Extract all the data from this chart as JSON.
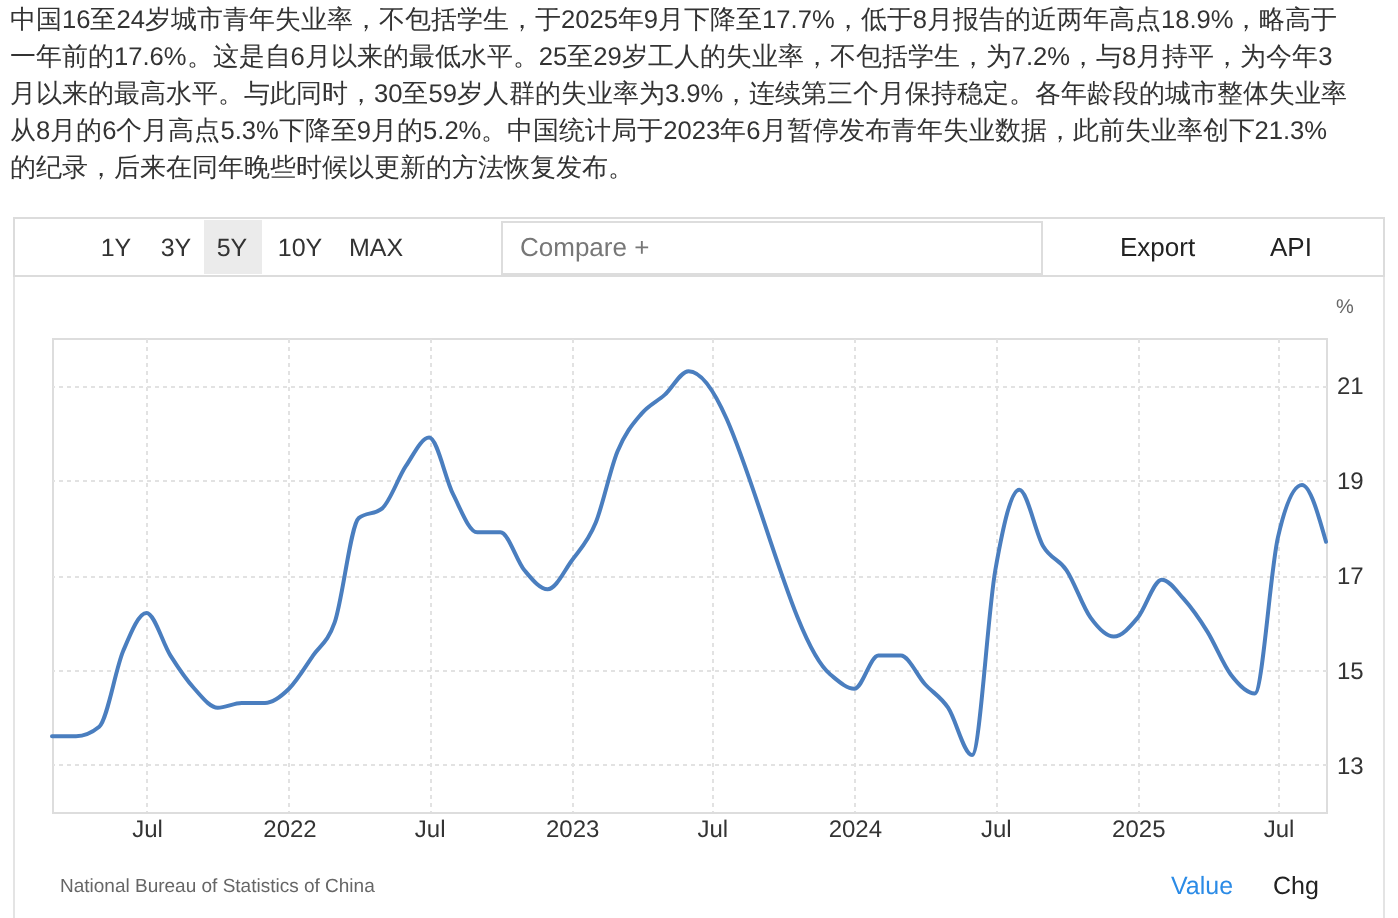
{
  "chart_data": {
    "type": "line",
    "subtitle": "中国16至24岁城市青年失业率，不包括学生，于2025年9月下降至17.7%，低于8月报告的近两年高点18.9%，略高于一年前的17.6%。这是自6月以来的最低水平。25至29岁工人的失业率，不包括学生，为7.2%，与8月持平，为今年3月以来的最高水平。与此同时，30至59岁人群的失业率为3.9%，连续第三个月保持稳定。各年龄段的城市整体失业率从8月的6个月高点5.3%下降至9月的5.2%。中国统计局于2023年6月暂停发布青年失业数据，此前失业率创下21.3%的纪录，后来在同年晚些时候以更新的方法恢复发布。",
    "ylabel": "%",
    "annotations": [
      "National Bureau of Statistics of China",
      "1Y",
      "3Y",
      "5Y",
      "10Y",
      "MAX",
      "Compare +",
      "Export",
      "API",
      "Value",
      "Chg"
    ],
    "x": [
      "2021-03",
      "2021-04",
      "2021-05",
      "2021-06",
      "2021-07",
      "2021-08",
      "2021-09",
      "2021-10",
      "2021-11",
      "2021-12",
      "2022-01",
      "2022-02",
      "2022-03",
      "2022-04",
      "2022-05",
      "2022-06",
      "2022-07",
      "2022-08",
      "2022-09",
      "2022-10",
      "2022-11",
      "2022-12",
      "2023-01",
      "2023-02",
      "2023-03",
      "2023-04",
      "2023-05",
      "2023-06",
      "2023-12",
      "2024-01",
      "2024-02",
      "2024-03",
      "2024-04",
      "2024-05",
      "2024-06",
      "2024-07",
      "2024-08",
      "2024-09",
      "2024-10",
      "2024-11",
      "2024-12",
      "2025-01",
      "2025-02",
      "2025-03",
      "2025-04",
      "2025-05",
      "2025-06",
      "2025-07",
      "2025-08",
      "2025-09"
    ],
    "values": [
      13.6,
      13.6,
      13.8,
      15.4,
      16.2,
      15.3,
      14.6,
      14.2,
      14.3,
      14.3,
      14.6,
      15.3,
      16.0,
      18.2,
      18.4,
      19.3,
      19.9,
      18.7,
      17.9,
      17.9,
      17.1,
      16.7,
      17.3,
      18.1,
      19.6,
      20.4,
      20.8,
      21.3,
      14.9,
      14.6,
      15.3,
      15.3,
      14.7,
      14.2,
      13.2,
      17.1,
      18.8,
      17.6,
      17.1,
      16.1,
      15.7,
      16.1,
      16.9,
      16.5,
      15.8,
      14.9,
      14.5,
      17.8,
      18.9,
      17.7
    ],
    "color": "#4a7ebf",
    "xlim": [
      "2021-03",
      "2025-09"
    ],
    "xticks": [
      {
        "value": "2021-07",
        "label": "Jul"
      },
      "2022",
      {
        "value": "2022-07",
        "label": "Jul"
      },
      "2023",
      {
        "value": "2023-07",
        "label": "Jul"
      },
      "2024",
      {
        "value": "2024-07",
        "label": "Jul"
      },
      "2025",
      {
        "value": "2025-07",
        "label": "Jul"
      }
    ],
    "ylim": [
      12,
      22
    ],
    "yticks": [
      13,
      15,
      17,
      19,
      21
    ],
    "grid": true
  }
}
